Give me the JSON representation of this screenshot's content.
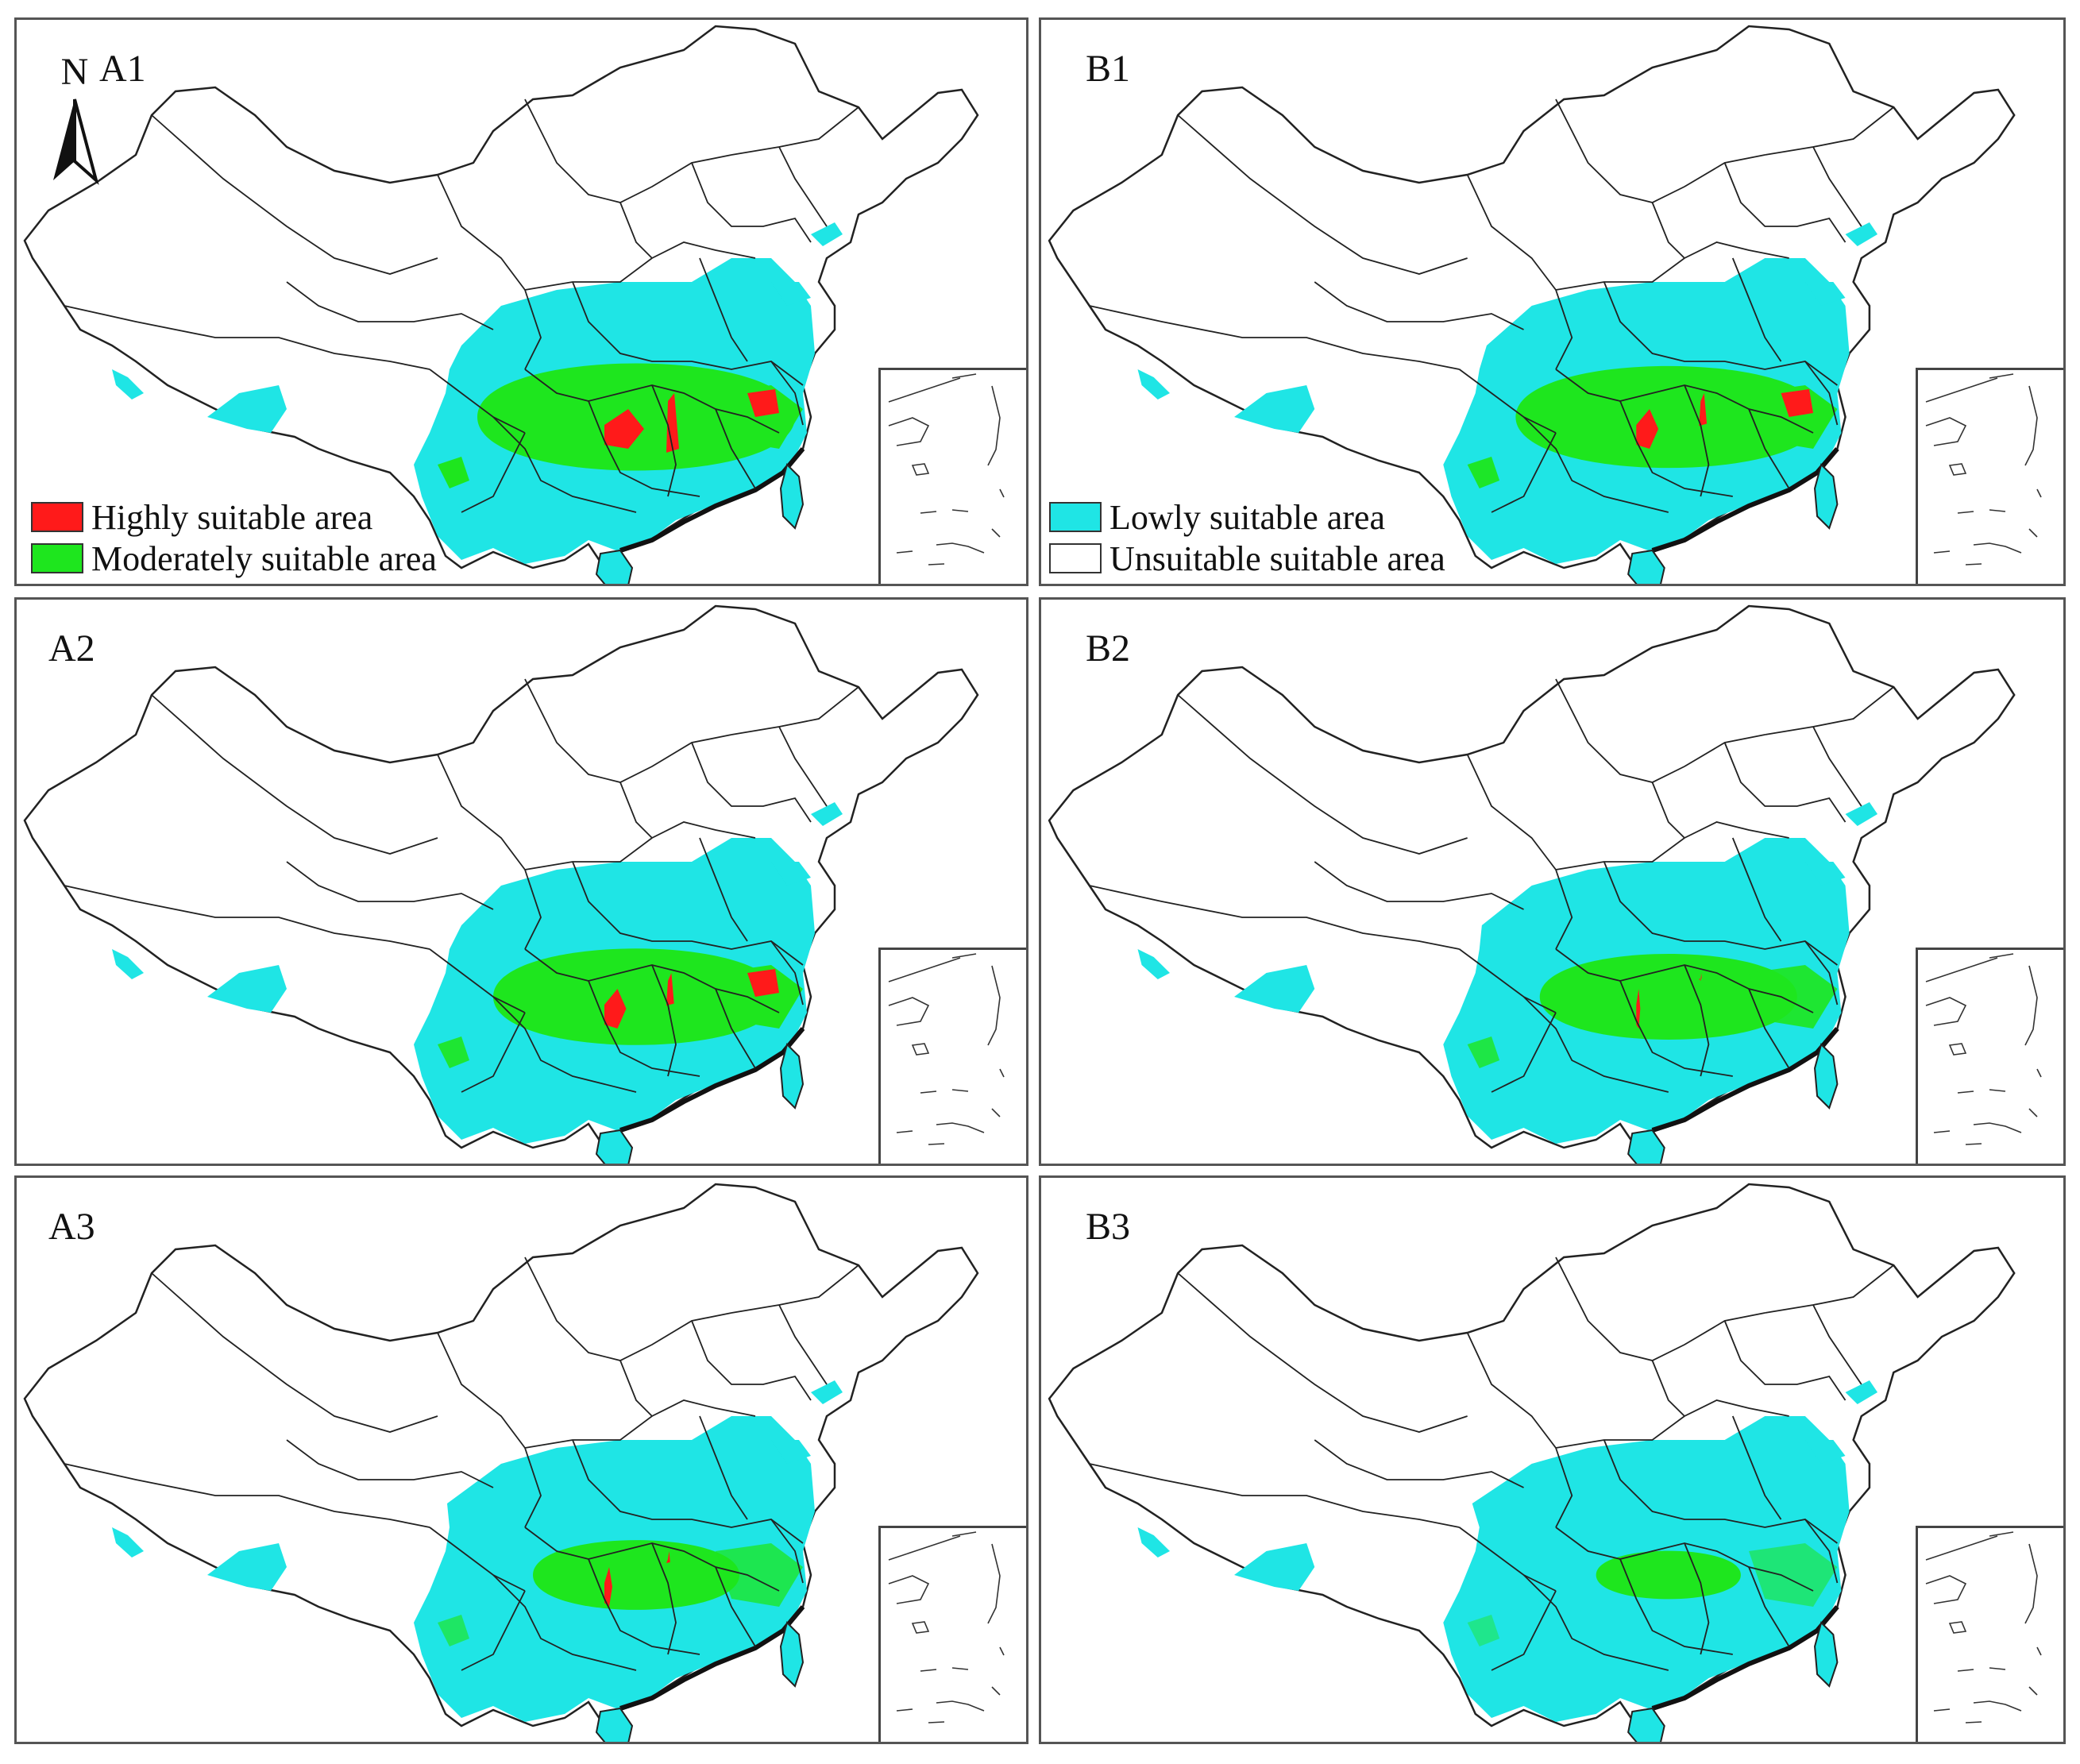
{
  "panels": [
    {
      "id": "A1",
      "label": "A1"
    },
    {
      "id": "B1",
      "label": "B1"
    },
    {
      "id": "A2",
      "label": "A2"
    },
    {
      "id": "B2",
      "label": "B2"
    },
    {
      "id": "A3",
      "label": "A3"
    },
    {
      "id": "B3",
      "label": "B3"
    }
  ],
  "north_arrow": {
    "letter": "N"
  },
  "legend": {
    "highly": {
      "label": "Highly suitable area",
      "color": "#ff1a1a"
    },
    "moderately": {
      "label": "Moderately suitable area",
      "color": "#1ee61e"
    },
    "lowly": {
      "label": "Lowly suitable area",
      "color": "#1fe5e5"
    },
    "unsuitable": {
      "label": "Unsuitable suitable area",
      "color": "#ffffff"
    }
  },
  "colors": {
    "outline": "#222222",
    "border": "#555555"
  }
}
